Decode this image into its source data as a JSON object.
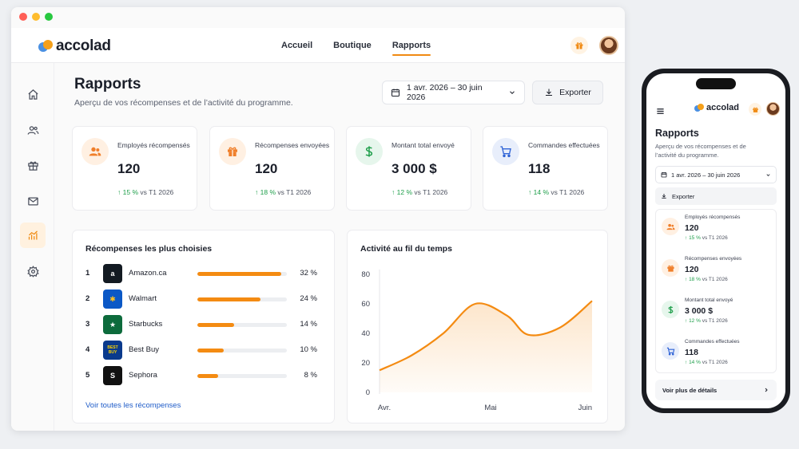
{
  "brand": {
    "name": "accolad"
  },
  "nav": {
    "links": [
      {
        "label": "Accueil"
      },
      {
        "label": "Boutique"
      },
      {
        "label": "Rapports",
        "active": true
      }
    ]
  },
  "sidebar": {
    "items": [
      {
        "icon": "home-icon"
      },
      {
        "icon": "users-icon"
      },
      {
        "icon": "gift-icon"
      },
      {
        "icon": "mail-icon"
      },
      {
        "icon": "chart-icon",
        "active": true
      },
      {
        "icon": "gear-icon"
      }
    ]
  },
  "page": {
    "title": "Rapports",
    "subtitle": "Aperçu de vos récompenses et de l’activité du programme.",
    "date_range": "1 avr. 2026 – 30 juin 2026",
    "export_label": "Exporter"
  },
  "stats": [
    {
      "label": "Employés récompensés",
      "value": "120",
      "delta": "15 %",
      "delta_suffix": "vs T1 2026",
      "icon": "users-icon",
      "color": "#f07f2a",
      "bg": "#fff0e2"
    },
    {
      "label": "Récompenses envoyées",
      "value": "120",
      "delta": "18 %",
      "delta_suffix": "vs T1 2026",
      "icon": "gift-icon",
      "color": "#f07f2a",
      "bg": "#fff0e2"
    },
    {
      "label": "Montant total envoyé",
      "value": "3 000 $",
      "delta": "12 %",
      "delta_suffix": "vs T1 2026",
      "icon": "dollar-icon",
      "color": "#1e9e4a",
      "bg": "#e6f6ec"
    },
    {
      "label": "Commandes effectuées",
      "value": "118",
      "delta": "14 %",
      "delta_suffix": "vs T1 2026",
      "icon": "cart-icon",
      "color": "#2f63d6",
      "bg": "#e8eefb"
    }
  ],
  "top_rewards": {
    "title": "Récompenses les plus choisies",
    "items": [
      {
        "rank": "1",
        "name": "Amazon.ca",
        "percent": 32,
        "percent_label": "32 %",
        "logo": "amazon-logo",
        "logo_text": "a",
        "logo_bg": "#131a22"
      },
      {
        "rank": "2",
        "name": "Walmart",
        "percent": 24,
        "percent_label": "24 %",
        "logo": "walmart-logo",
        "logo_text": "✱",
        "logo_bg": "#0b58c6"
      },
      {
        "rank": "3",
        "name": "Starbucks",
        "percent": 14,
        "percent_label": "14 %",
        "logo": "starbucks-logo",
        "logo_text": "★",
        "logo_bg": "#0d6b3c"
      },
      {
        "rank": "4",
        "name": "Best Buy",
        "percent": 10,
        "percent_label": "10 %",
        "logo": "bestbuy-logo",
        "logo_text": "BEST BUY",
        "logo_bg": "#0a3a8c"
      },
      {
        "rank": "5",
        "name": "Sephora",
        "percent": 8,
        "percent_label": "8 %",
        "logo": "sephora-logo",
        "logo_text": "S",
        "logo_bg": "#111111"
      }
    ],
    "see_all": "Voir toutes les récompenses"
  },
  "chart_data": {
    "type": "area",
    "title": "Activité au fil du temps",
    "x_tick_labels": [
      "Avr.",
      "Mai",
      "Juin"
    ],
    "y_ticks": [
      0,
      20,
      40,
      60,
      80
    ],
    "ylim": [
      0,
      80
    ],
    "xlim": [
      0,
      10
    ],
    "points": [
      [
        0,
        15
      ],
      [
        1.5,
        25
      ],
      [
        3,
        40
      ],
      [
        4.5,
        60
      ],
      [
        6,
        52
      ],
      [
        7,
        39
      ],
      [
        8.5,
        44
      ],
      [
        10,
        62
      ]
    ],
    "color": "#f48b12",
    "grid": false
  },
  "mobile": {
    "brand": "accolad",
    "title": "Rapports",
    "subtitle": "Aperçu de vos récompenses et de l’activité du programme.",
    "date_range": "1 avr. 2026 – 30 juin 2026",
    "export_label": "Exporter",
    "more_label": "Voir plus de détails"
  }
}
